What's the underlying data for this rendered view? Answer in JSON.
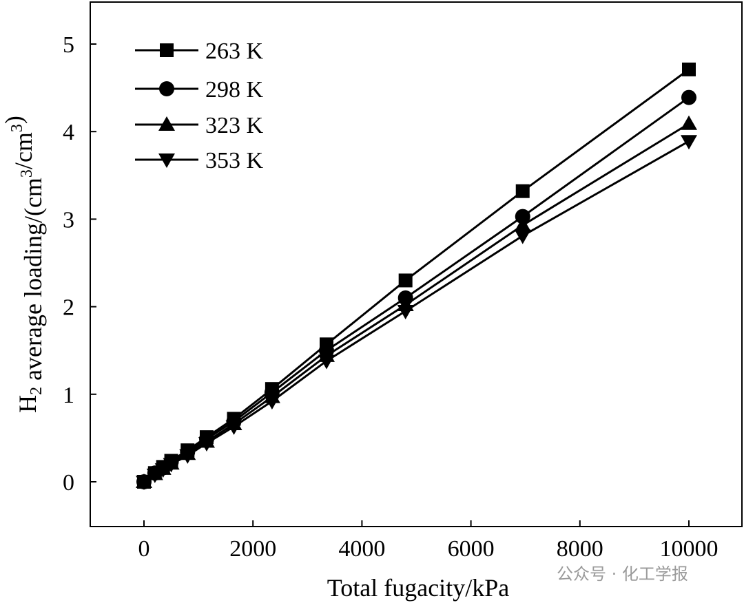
{
  "chart_data": {
    "type": "line",
    "xlabel": "Total fugacity/kPa",
    "ylabel_parts": {
      "main": "H",
      "sub": "2",
      "rest": " average loading/(cm",
      "sup1": "3",
      "mid": "/cm",
      "sup2": "3",
      "end": ")"
    },
    "xlim": [
      -1000,
      11000
    ],
    "ylim": [
      -0.5,
      5.5
    ],
    "xticks": [
      0,
      2000,
      4000,
      6000,
      8000,
      10000
    ],
    "yticks": [
      0,
      1,
      2,
      3,
      4,
      5
    ],
    "legend_position": "top-left",
    "x": [
      0,
      200,
      350,
      500,
      800,
      1150,
      1650,
      2350,
      3350,
      4800,
      6950,
      10000
    ],
    "series": [
      {
        "name": "263 K",
        "marker": "square",
        "values": [
          0,
          0.1,
          0.17,
          0.24,
          0.36,
          0.51,
          0.72,
          1.06,
          1.57,
          2.3,
          3.32,
          4.71
        ]
      },
      {
        "name": "298 K",
        "marker": "circle",
        "values": [
          0,
          0.1,
          0.16,
          0.23,
          0.34,
          0.49,
          0.69,
          1.02,
          1.5,
          2.1,
          3.03,
          4.39
        ]
      },
      {
        "name": "323 K",
        "marker": "triangle-up",
        "values": [
          0,
          0.09,
          0.15,
          0.21,
          0.32,
          0.46,
          0.66,
          0.97,
          1.44,
          2.02,
          2.93,
          4.09
        ]
      },
      {
        "name": "353 K",
        "marker": "triangle-down",
        "values": [
          0,
          0.08,
          0.14,
          0.2,
          0.3,
          0.44,
          0.63,
          0.92,
          1.38,
          1.95,
          2.81,
          3.89
        ]
      }
    ]
  },
  "watermark": "公众号 · 化工学报"
}
